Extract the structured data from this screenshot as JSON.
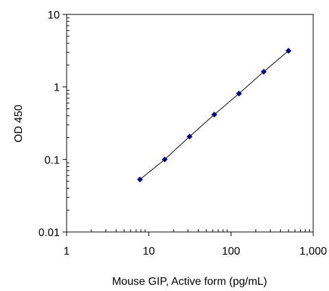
{
  "chart_data": {
    "type": "scatter",
    "title": "",
    "xlabel": "Mouse GIP, Active form (pg/mL)",
    "ylabel": "OD 450",
    "x_scale": "log",
    "y_scale": "log",
    "xlim": [
      1,
      1000
    ],
    "ylim": [
      0.01,
      10
    ],
    "grid": false,
    "legend": "none",
    "x_ticks": [
      {
        "value": 1,
        "label": "1"
      },
      {
        "value": 10,
        "label": "10"
      },
      {
        "value": 100,
        "label": "100"
      },
      {
        "value": 1000,
        "label": "1,000"
      }
    ],
    "y_ticks": [
      {
        "value": 0.01,
        "label": "0.01"
      },
      {
        "value": 0.1,
        "label": "0.1"
      },
      {
        "value": 1,
        "label": "1"
      },
      {
        "value": 10,
        "label": "10"
      }
    ],
    "series": [
      {
        "x": [
          7.8,
          15.6,
          31.3,
          62.5,
          125,
          250,
          500
        ],
        "y": [
          0.053,
          0.1,
          0.207,
          0.415,
          0.81,
          1.62,
          3.15
        ],
        "marker": "diamond",
        "color": "#000080",
        "line_color": "#000000"
      }
    ]
  }
}
